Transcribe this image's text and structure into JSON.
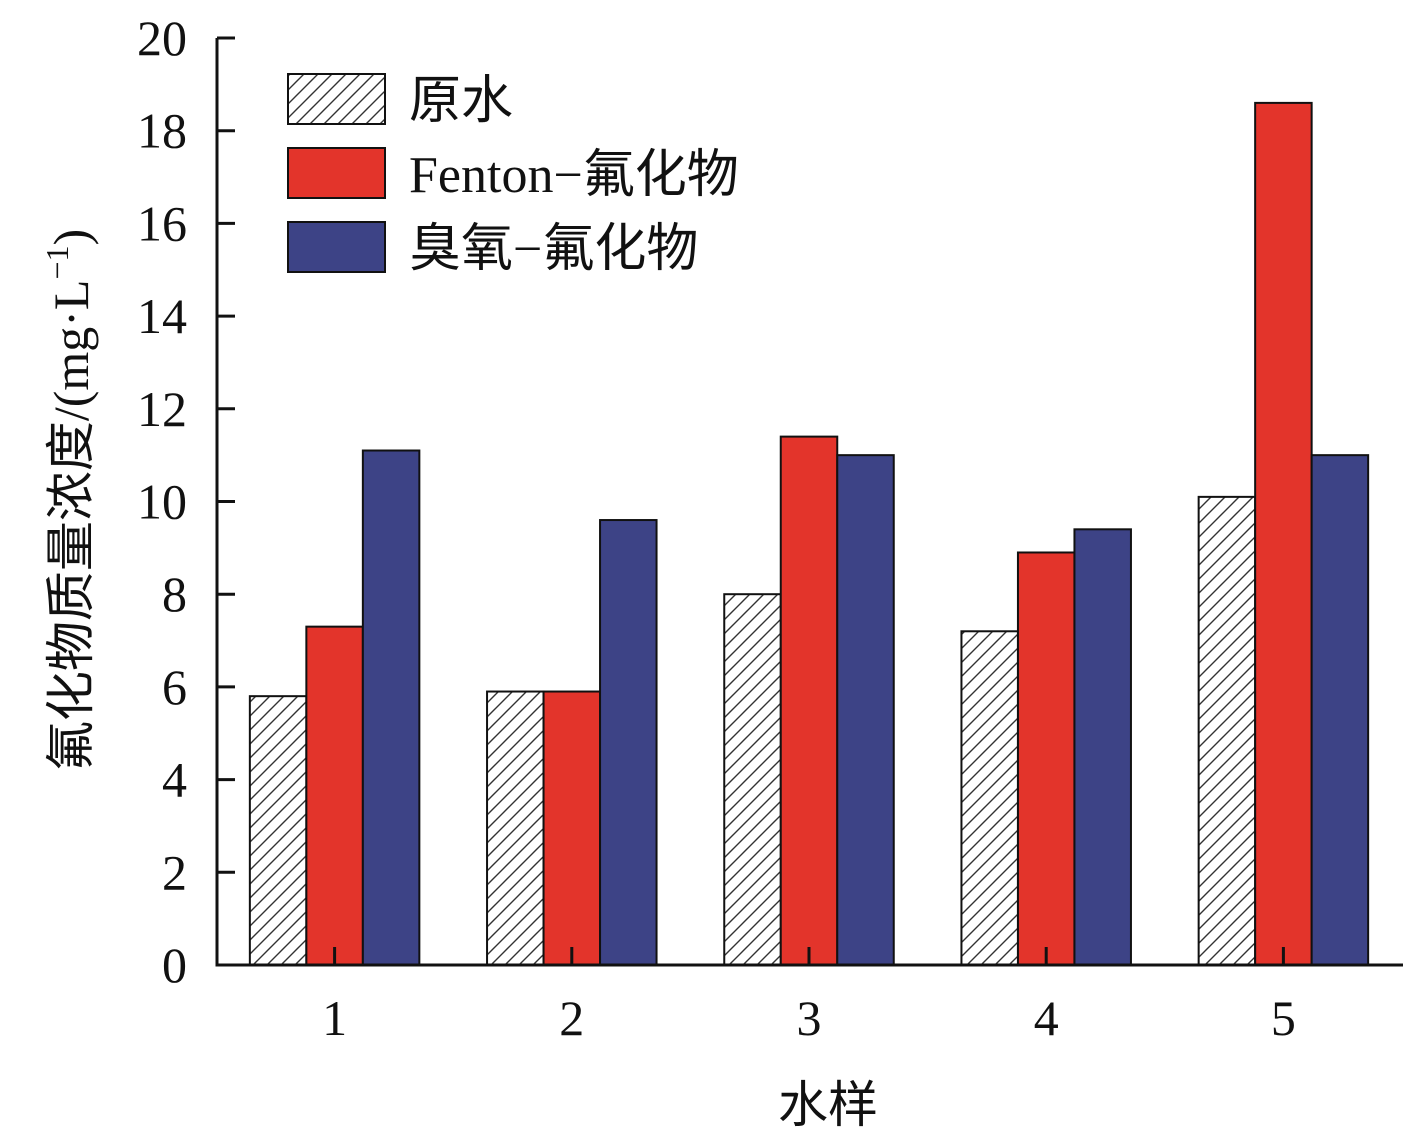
{
  "chart_data": {
    "type": "bar",
    "xlabel": "水样",
    "ylabel": "氟化物质量浓度/(mg·L",
    "ylabel_sup": "−1",
    "ylabel_close": ")",
    "categories": [
      "1",
      "2",
      "3",
      "4",
      "5"
    ],
    "ylim": [
      0,
      20
    ],
    "yticks": [
      0,
      2,
      4,
      6,
      8,
      10,
      12,
      14,
      16,
      18,
      20
    ],
    "grid": false,
    "legend_position": "top-left",
    "series": [
      {
        "name": "原水",
        "values": [
          5.8,
          5.9,
          8.0,
          7.2,
          10.1
        ],
        "color": "#ffffff",
        "pattern": "hatch"
      },
      {
        "name": "Fenton−氟化物",
        "values": [
          7.3,
          5.9,
          11.4,
          8.9,
          18.6
        ],
        "color": "#e3342b"
      },
      {
        "name": "臭氧−氟化物",
        "values": [
          11.1,
          9.6,
          11.0,
          9.4,
          11.0
        ],
        "color": "#3d4386"
      }
    ]
  }
}
